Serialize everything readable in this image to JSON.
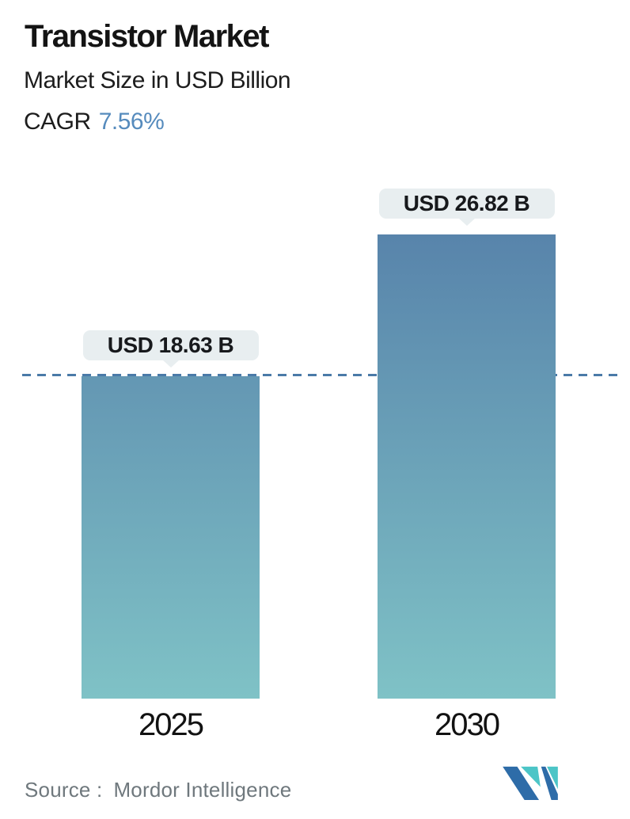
{
  "header": {
    "title": "Transistor Market",
    "subtitle": "Market Size in USD Billion",
    "cagr_label": "CAGR",
    "cagr_value": "7.56%"
  },
  "chart_data": {
    "type": "bar",
    "title": "Transistor Market",
    "subtitle": "Market Size in USD Billion",
    "unit": "USD Billion",
    "cagr_pct": 7.56,
    "categories": [
      "2025",
      "2030"
    ],
    "values": [
      18.63,
      26.82
    ],
    "value_labels": [
      "USD 18.63 B",
      "USD 26.82 B"
    ],
    "ylim": [
      0,
      28
    ],
    "grid": false,
    "legend": false,
    "reference_line": {
      "value": 18.63,
      "style": "dashed",
      "color": "#4a7aa8"
    }
  },
  "footer": {
    "source_label": "Source :",
    "source_value": "Mordor Intelligence",
    "logo": "mordor-intelligence-logo"
  },
  "colors": {
    "accent": "#568bbd",
    "bar_top": "#5884ab",
    "bar_bottom": "#7fc2c6",
    "dash": "#4a7aa8",
    "bubble_bg": "#e8eef0",
    "text_dark": "#141414",
    "text_gray": "#6f787d",
    "logo_blue": "#2e6ca8",
    "logo_teal": "#4cc5c7"
  }
}
